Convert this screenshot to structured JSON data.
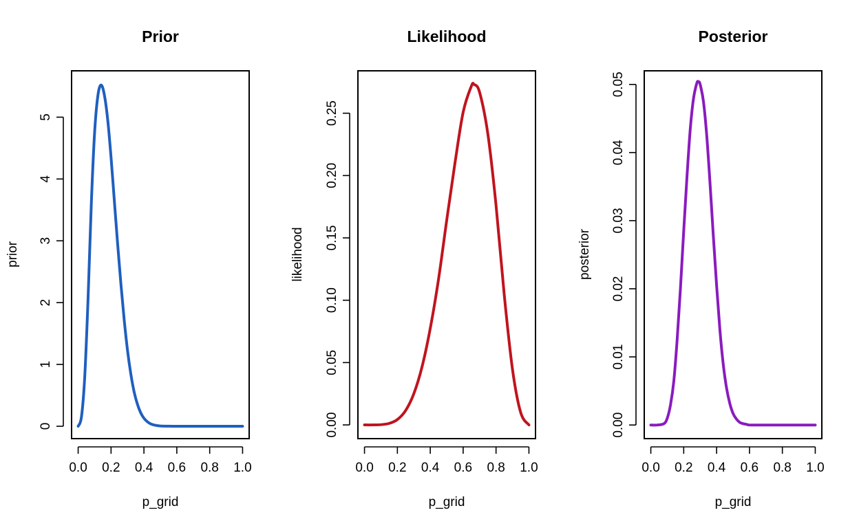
{
  "chart_data": [
    {
      "type": "line",
      "title": "Prior",
      "xlabel": "p_grid",
      "ylabel": "prior",
      "color": "#1f5fbf",
      "xlim": [
        0,
        1
      ],
      "ylim": [
        -0.2,
        5.75
      ],
      "x_ticks": [
        "0.0",
        "0.2",
        "0.4",
        "0.6",
        "0.8",
        "1.0"
      ],
      "y_ticks": [
        "0",
        "1",
        "2",
        "3",
        "4",
        "5"
      ],
      "x": [
        0.0,
        0.02,
        0.04,
        0.06,
        0.08,
        0.1,
        0.12,
        0.14,
        0.16,
        0.18,
        0.2,
        0.22,
        0.24,
        0.26,
        0.28,
        0.3,
        0.32,
        0.34,
        0.36,
        0.38,
        0.4,
        0.42,
        0.44,
        0.46,
        0.48,
        0.5,
        0.55,
        0.6,
        0.7,
        0.8,
        0.9,
        1.0
      ],
      "y": [
        0.0,
        0.15,
        0.8,
        2.05,
        3.6,
        4.75,
        5.35,
        5.52,
        5.35,
        4.95,
        4.35,
        3.65,
        2.95,
        2.3,
        1.72,
        1.23,
        0.85,
        0.56,
        0.36,
        0.22,
        0.13,
        0.075,
        0.04,
        0.022,
        0.011,
        0.005,
        0.001,
        0.0,
        0.0,
        0.0,
        0.0,
        0.0
      ]
    },
    {
      "type": "line",
      "title": "Likelihood",
      "xlabel": "p_grid",
      "ylabel": "likelihood",
      "color": "#c0141e",
      "xlim": [
        0,
        1
      ],
      "ylim": [
        -0.011,
        0.284
      ],
      "x_ticks": [
        "0.0",
        "0.2",
        "0.4",
        "0.6",
        "0.8",
        "1.0"
      ],
      "y_ticks": [
        "0.00",
        "0.05",
        "0.10",
        "0.15",
        "0.20",
        "0.25"
      ],
      "x": [
        0.0,
        0.05,
        0.1,
        0.15,
        0.2,
        0.25,
        0.3,
        0.35,
        0.4,
        0.45,
        0.5,
        0.55,
        0.6,
        0.65,
        0.667,
        0.7,
        0.75,
        0.8,
        0.85,
        0.9,
        0.95,
        1.0
      ],
      "y": [
        0.0,
        0.0,
        0.0002,
        0.0012,
        0.0043,
        0.0115,
        0.025,
        0.0466,
        0.0774,
        0.1166,
        0.1641,
        0.2098,
        0.2508,
        0.2717,
        0.273,
        0.2668,
        0.2336,
        0.1762,
        0.1042,
        0.0446,
        0.0099,
        0.0
      ]
    },
    {
      "type": "line",
      "title": "Posterior",
      "xlabel": "p_grid",
      "ylabel": "posterior",
      "color": "#8a1bbf",
      "xlim": [
        0,
        1
      ],
      "ylim": [
        -0.002,
        0.052
      ],
      "x_ticks": [
        "0.0",
        "0.2",
        "0.4",
        "0.6",
        "0.8",
        "1.0"
      ],
      "y_ticks": [
        "0.00",
        "0.01",
        "0.02",
        "0.03",
        "0.04",
        "0.05"
      ],
      "x": [
        0.0,
        0.04,
        0.08,
        0.1,
        0.12,
        0.14,
        0.16,
        0.18,
        0.2,
        0.22,
        0.24,
        0.26,
        0.28,
        0.29,
        0.3,
        0.32,
        0.34,
        0.36,
        0.38,
        0.4,
        0.42,
        0.44,
        0.46,
        0.48,
        0.5,
        0.52,
        0.54,
        0.56,
        0.58,
        0.6,
        0.65,
        0.7,
        0.8,
        0.9,
        1.0
      ],
      "y": [
        0.0,
        0.0,
        0.0002,
        0.001,
        0.003,
        0.0065,
        0.0125,
        0.02,
        0.0285,
        0.0365,
        0.0435,
        0.048,
        0.0502,
        0.0504,
        0.05,
        0.0475,
        0.0425,
        0.0355,
        0.0278,
        0.0205,
        0.014,
        0.009,
        0.0055,
        0.0032,
        0.0017,
        0.0009,
        0.0004,
        0.0002,
        0.0001,
        0.0,
        0.0,
        0.0,
        0.0,
        0.0,
        0.0
      ]
    }
  ]
}
